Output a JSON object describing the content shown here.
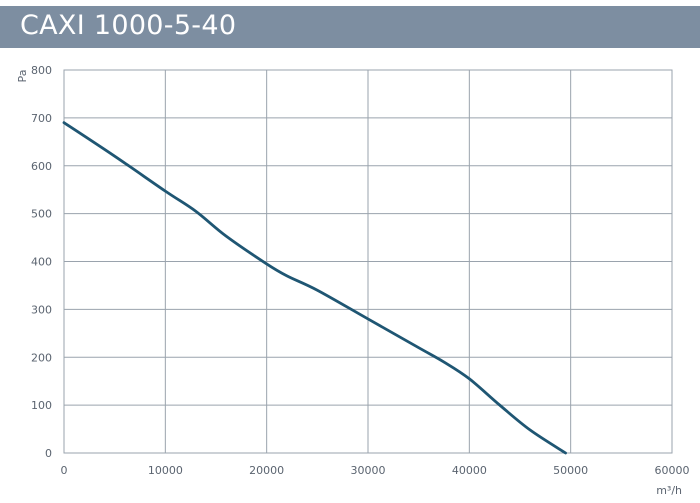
{
  "header": {
    "title": "CAXI 1000-5-40"
  },
  "chart_data": {
    "type": "line",
    "title": "CAXI 1000-5-40",
    "xlabel": "m³/h",
    "ylabel": "Pa",
    "xlim": [
      0,
      60000
    ],
    "ylim": [
      0,
      800
    ],
    "xticks": [
      0,
      10000,
      20000,
      30000,
      40000,
      50000,
      60000
    ],
    "yticks": [
      0,
      100,
      200,
      300,
      400,
      500,
      600,
      700,
      800
    ],
    "grid": true,
    "series": [
      {
        "color": "#1f5673",
        "x": [
          0,
          5000,
          10000,
          13000,
          16000,
          20000,
          22000,
          25000,
          30000,
          35000,
          37500,
          40000,
          43000,
          46000,
          49500
        ],
        "y": [
          690,
          620,
          547,
          505,
          453,
          395,
          370,
          340,
          280,
          220,
          190,
          155,
          100,
          48,
          0
        ]
      }
    ]
  }
}
